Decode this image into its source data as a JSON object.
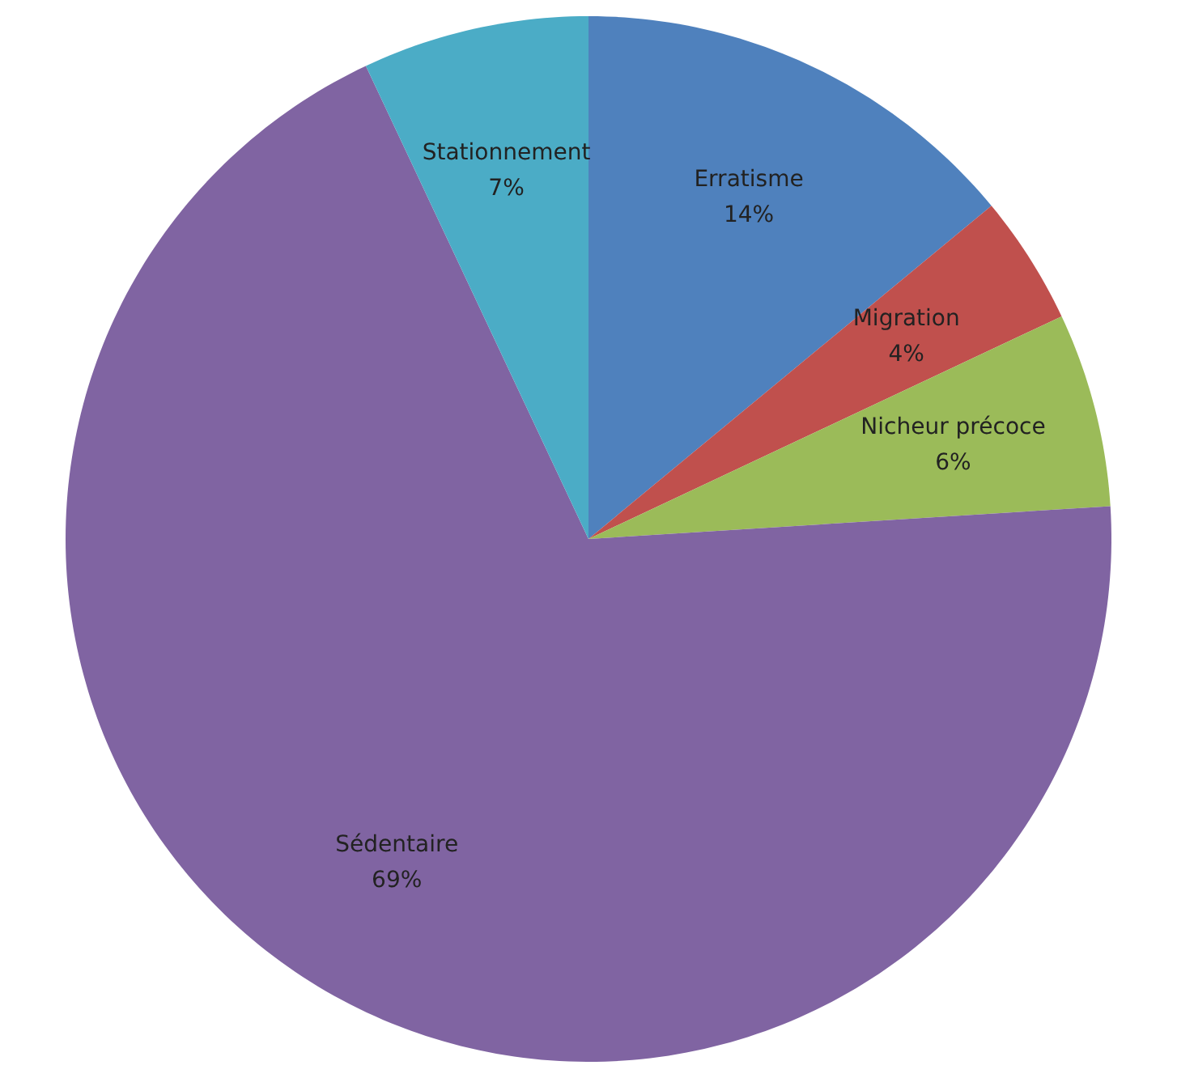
{
  "chart_data": {
    "type": "pie",
    "categories": [
      "Erratisme",
      "Migration",
      "Nicheur précoce",
      "Sédentaire",
      "Stationnement"
    ],
    "values": [
      14,
      4,
      6,
      69,
      7
    ],
    "colors": [
      "#4f81bd",
      "#c0504d",
      "#9bbb59",
      "#8064a2",
      "#4bacc6"
    ],
    "value_labels": [
      "14%",
      "4%",
      "6%",
      "69%",
      "7%"
    ],
    "legend": false
  }
}
